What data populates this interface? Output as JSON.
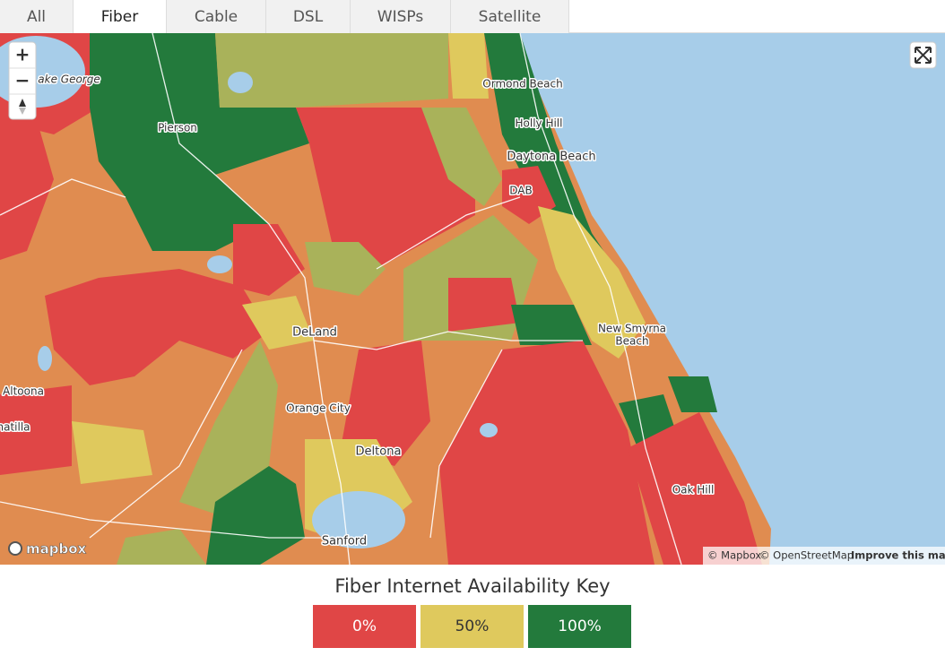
{
  "tabs": [
    "All",
    "Fiber",
    "Cable",
    "DSL",
    "WISPs",
    "Satellite"
  ],
  "map": {
    "zoom_controls": [
      "+",
      "−"
    ],
    "place_labels": [
      "ake George",
      "Pierson",
      "Ormond Beach",
      "Holly Hill",
      "Daytona Beach",
      "DAB",
      "New Smyrna",
      "Beach",
      "DeLand",
      "Altoona",
      "natilla",
      "Orange City",
      "Deltona",
      "Oak Hill",
      "Sanford"
    ],
    "logo": "mapbox",
    "attribution": [
      "© Mapbox",
      "© OpenStreetMap",
      "Improve this map"
    ]
  },
  "legend": {
    "title": "Fiber Internet Availability Key",
    "items": [
      {
        "label": "0%",
        "color": "#e04646"
      },
      {
        "label": "50%",
        "color": "#dfc95d"
      },
      {
        "label": "100%",
        "color": "#237a3c"
      }
    ]
  }
}
